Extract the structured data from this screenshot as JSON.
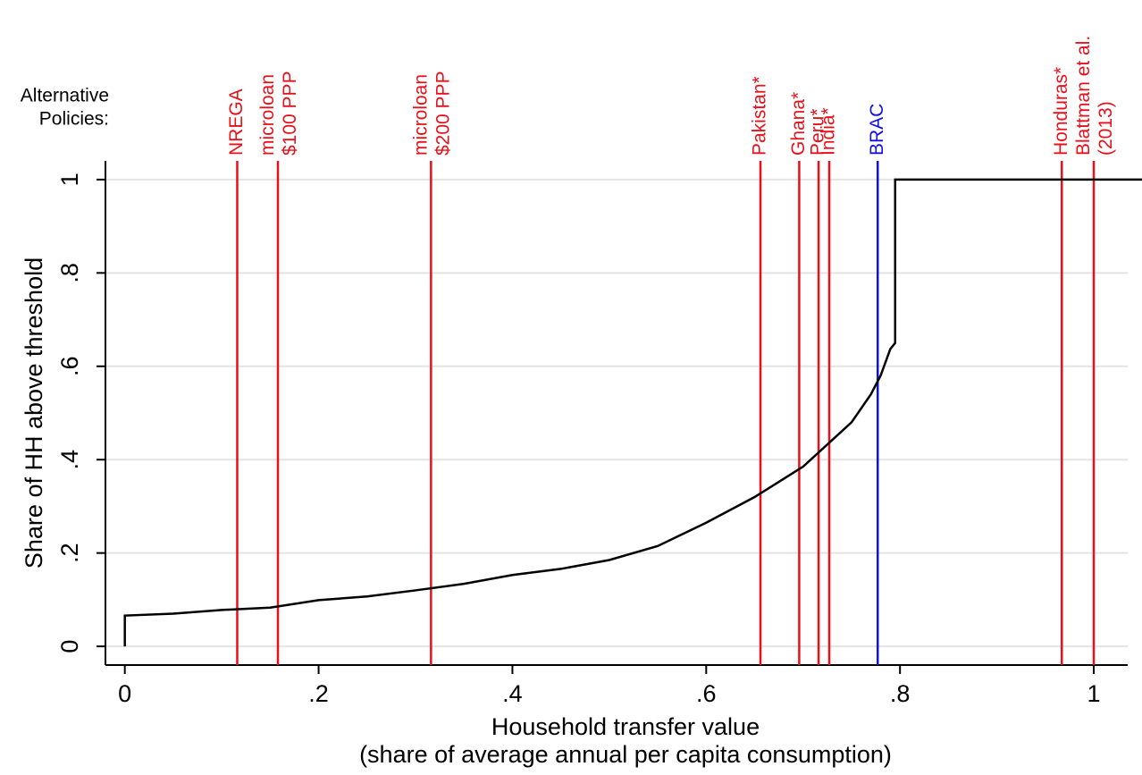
{
  "chart_data": {
    "type": "line",
    "xlabel": [
      "Household transfer value",
      "(share of average annual per capita consumption)"
    ],
    "ylabel": "Share of HH above threshold",
    "annotation": [
      "Alternative",
      "Policies:"
    ],
    "xlim": [
      -0.02,
      1.035
    ],
    "ylim": [
      -0.04,
      1.04
    ],
    "xticks": [
      0,
      {
        "value": 0.2,
        "label": ".2"
      },
      {
        "value": 0.4,
        "label": ".4"
      },
      {
        "value": 0.6,
        "label": ".6"
      },
      {
        "value": 0.8,
        "label": ".8"
      },
      1
    ],
    "yticks": [
      0,
      {
        "value": 0.2,
        "label": ".2"
      },
      {
        "value": 0.4,
        "label": ".4"
      },
      {
        "value": 0.6,
        "label": ".6"
      },
      {
        "value": 0.8,
        "label": ".8"
      },
      1
    ],
    "grid": true,
    "series": [
      {
        "color": "#000000",
        "x": [
          0,
          0,
          0.05,
          0.1,
          0.15,
          0.2,
          0.25,
          0.3,
          0.35,
          0.4,
          0.45,
          0.5,
          0.55,
          0.6,
          0.65,
          0.7,
          0.75,
          0.77,
          0.78,
          0.79,
          0.795,
          0.795,
          1.05
        ],
        "values": [
          0,
          0.066,
          0.07,
          0.078,
          0.083,
          0.099,
          0.107,
          0.12,
          0.134,
          0.153,
          0.166,
          0.185,
          0.215,
          0.265,
          0.32,
          0.385,
          0.48,
          0.54,
          0.58,
          0.637,
          0.65,
          1,
          1
        ]
      }
    ],
    "policies": [
      {
        "label": [
          "NREGA"
        ],
        "x": 0.116,
        "color": "#e8101a"
      },
      {
        "label": [
          "microloan",
          "$100 PPP"
        ],
        "x": 0.158,
        "color": "#e8101a"
      },
      {
        "label": [
          "microloan",
          "$200 PPP"
        ],
        "x": 0.316,
        "color": "#e8101a"
      },
      {
        "label": [
          "Pakistan*"
        ],
        "x": 0.656,
        "color": "#e8101a"
      },
      {
        "label": [
          "Ghana*"
        ],
        "x": 0.696,
        "color": "#e8101a"
      },
      {
        "label": [
          "Peru*"
        ],
        "x": 0.716,
        "color": "#e8101a"
      },
      {
        "label": [
          "India*"
        ],
        "x": 0.727,
        "color": "#e8101a"
      },
      {
        "label": [
          "BRAC"
        ],
        "x": 0.777,
        "color": "#1010e0"
      },
      {
        "label": [
          "Honduras*"
        ],
        "x": 0.967,
        "color": "#e8101a"
      },
      {
        "label": [
          "Blattman et al.",
          "(2013)"
        ],
        "x": 1.0,
        "color": "#e8101a"
      }
    ]
  }
}
